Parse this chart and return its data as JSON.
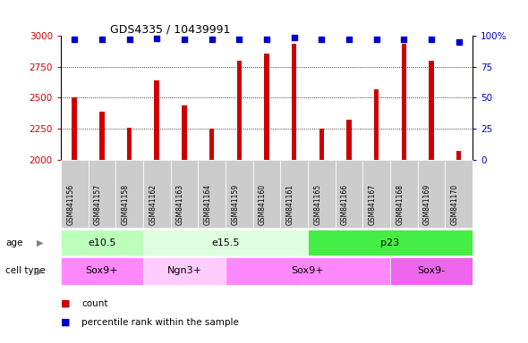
{
  "title": "GDS4335 / 10439991",
  "samples": [
    "GSM841156",
    "GSM841157",
    "GSM841158",
    "GSM841162",
    "GSM841163",
    "GSM841164",
    "GSM841159",
    "GSM841160",
    "GSM841161",
    "GSM841165",
    "GSM841166",
    "GSM841167",
    "GSM841168",
    "GSM841169",
    "GSM841170"
  ],
  "counts": [
    2500,
    2390,
    2255,
    2640,
    2440,
    2250,
    2800,
    2855,
    2940,
    2250,
    2320,
    2570,
    2940,
    2800,
    2070
  ],
  "percentile_ranks": [
    97,
    97,
    97,
    98,
    97,
    97,
    97,
    97,
    99,
    97,
    97,
    97,
    97,
    97,
    95
  ],
  "ylim_left": [
    2000,
    3000
  ],
  "ylim_right": [
    0,
    100
  ],
  "yticks_left": [
    2000,
    2250,
    2500,
    2750,
    3000
  ],
  "yticks_right": [
    0,
    25,
    50,
    75,
    100
  ],
  "ytick_right_labels": [
    "0",
    "25",
    "50",
    "75",
    "100%"
  ],
  "bar_color": "#cc0000",
  "dot_color": "#0000cc",
  "age_groups": [
    {
      "label": "e10.5",
      "start": 0,
      "end": 3,
      "color": "#bbffbb"
    },
    {
      "label": "e15.5",
      "start": 3,
      "end": 9,
      "color": "#ddffdd"
    },
    {
      "label": "p23",
      "start": 9,
      "end": 15,
      "color": "#44ee44"
    }
  ],
  "cell_type_groups": [
    {
      "label": "Sox9+",
      "start": 0,
      "end": 3,
      "color": "#ff88ff"
    },
    {
      "label": "Ngn3+",
      "start": 3,
      "end": 6,
      "color": "#ffccff"
    },
    {
      "label": "Sox9+",
      "start": 6,
      "end": 12,
      "color": "#ff88ff"
    },
    {
      "label": "Sox9-",
      "start": 12,
      "end": 15,
      "color": "#ee66ee"
    }
  ],
  "sample_label_bg": "#cccccc",
  "fig_width": 5.9,
  "fig_height": 3.84,
  "dpi": 100
}
